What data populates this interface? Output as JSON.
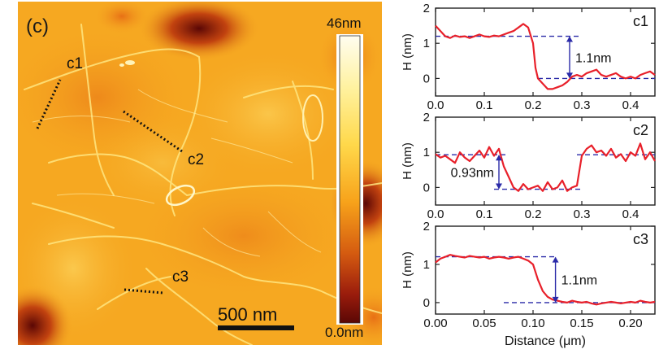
{
  "afm_image": {
    "panel_label": "(c)",
    "colorbar": {
      "max_label": "46nm",
      "min_label": "0.0nm",
      "max_value_nm": 46,
      "min_value_nm": 0.0,
      "colors": [
        "#fffdf0",
        "#fff2a0",
        "#ffd84a",
        "#f7a21a",
        "#d45a10",
        "#9a1c0c",
        "#5a0705"
      ]
    },
    "scale_bar_label": "500 nm",
    "scale_bar_length_nm": 500,
    "line_labels": [
      "c1",
      "c2",
      "c3"
    ],
    "base_color": "#f6a821"
  },
  "chart_data": [
    {
      "type": "line",
      "panel": "c1",
      "title": "c1",
      "xlabel": "",
      "ylabel": "H (nm)",
      "xlim": [
        0.0,
        0.45
      ],
      "ylim": [
        -0.5,
        2.0
      ],
      "xticks": [
        "0.0",
        "0.1",
        "0.2",
        "0.3",
        "0.4"
      ],
      "yticks": [
        "0",
        "1",
        "2"
      ],
      "series": [
        {
          "color": "#e8202a",
          "x": [
            0.0,
            0.01,
            0.02,
            0.03,
            0.04,
            0.05,
            0.06,
            0.07,
            0.08,
            0.09,
            0.1,
            0.11,
            0.12,
            0.13,
            0.14,
            0.15,
            0.16,
            0.17,
            0.18,
            0.19,
            0.2,
            0.205,
            0.21,
            0.22,
            0.23,
            0.24,
            0.25,
            0.26,
            0.27,
            0.28,
            0.29,
            0.3,
            0.31,
            0.32,
            0.33,
            0.34,
            0.35,
            0.36,
            0.37,
            0.38,
            0.39,
            0.4,
            0.41,
            0.42,
            0.43,
            0.44,
            0.45
          ],
          "y": [
            1.5,
            1.35,
            1.2,
            1.15,
            1.22,
            1.18,
            1.2,
            1.15,
            1.2,
            1.25,
            1.2,
            1.18,
            1.22,
            1.2,
            1.25,
            1.3,
            1.35,
            1.45,
            1.55,
            1.45,
            1.0,
            0.3,
            0.0,
            -0.15,
            -0.3,
            -0.3,
            -0.25,
            -0.2,
            -0.1,
            0.05,
            0.1,
            0.05,
            0.15,
            0.2,
            0.25,
            0.1,
            0.05,
            0.1,
            0.15,
            0.05,
            0.0,
            0.05,
            0.0,
            0.1,
            0.15,
            0.2,
            0.1
          ]
        }
      ],
      "reference_lines": [
        {
          "y": 1.2,
          "x_from": 0.0,
          "x_to": 0.3
        },
        {
          "y": 0.0,
          "x_from": 0.21,
          "x_to": 0.45
        }
      ],
      "annotation": {
        "text": "1.1nm",
        "arrow_x": 0.275,
        "y_from": 0.0,
        "y_to": 1.2
      }
    },
    {
      "type": "line",
      "panel": "c2",
      "title": "c2",
      "xlabel": "",
      "ylabel": "H (nm)",
      "xlim": [
        0.0,
        0.45
      ],
      "ylim": [
        -0.5,
        2.0
      ],
      "xticks": [
        "0.0",
        "0.1",
        "0.2",
        "0.3",
        "0.4"
      ],
      "yticks": [
        "0",
        "1",
        "2"
      ],
      "series": [
        {
          "color": "#e8202a",
          "x": [
            0.0,
            0.01,
            0.02,
            0.03,
            0.04,
            0.05,
            0.06,
            0.07,
            0.08,
            0.09,
            0.1,
            0.11,
            0.12,
            0.13,
            0.14,
            0.15,
            0.16,
            0.17,
            0.18,
            0.19,
            0.2,
            0.21,
            0.22,
            0.23,
            0.24,
            0.25,
            0.26,
            0.27,
            0.28,
            0.29,
            0.3,
            0.31,
            0.32,
            0.33,
            0.34,
            0.35,
            0.36,
            0.37,
            0.38,
            0.39,
            0.4,
            0.41,
            0.42,
            0.43,
            0.44,
            0.45
          ],
          "y": [
            0.95,
            0.85,
            0.9,
            0.8,
            0.7,
            1.0,
            0.85,
            0.75,
            0.9,
            1.05,
            0.85,
            1.15,
            0.9,
            1.1,
            0.6,
            0.3,
            0.0,
            -0.1,
            0.1,
            -0.05,
            0.0,
            0.05,
            -0.1,
            0.15,
            -0.05,
            0.0,
            0.2,
            -0.1,
            0.0,
            0.05,
            0.9,
            1.1,
            1.2,
            1.0,
            1.05,
            0.9,
            1.1,
            0.85,
            0.95,
            0.75,
            1.0,
            0.9,
            1.25,
            0.8,
            1.0,
            0.75
          ]
        }
      ],
      "reference_lines": [
        {
          "y": 0.93,
          "x_from": 0.0,
          "x_to": 0.15
        },
        {
          "y": -0.05,
          "x_from": 0.12,
          "x_to": 0.3
        },
        {
          "y": 0.93,
          "x_from": 0.29,
          "x_to": 0.45
        }
      ],
      "annotation": {
        "text": "0.93nm",
        "arrow_x": 0.13,
        "y_from": -0.05,
        "y_to": 0.93
      }
    },
    {
      "type": "line",
      "panel": "c3",
      "title": "c3",
      "xlabel": "Distance (μm)",
      "ylabel": "H (nm)",
      "xlim": [
        0.0,
        0.225
      ],
      "ylim": [
        -0.3,
        2.0
      ],
      "xticks": [
        "0.00",
        "0.05",
        "0.10",
        "0.15",
        "0.20"
      ],
      "yticks": [
        "0",
        "1",
        "2"
      ],
      "series": [
        {
          "color": "#e8202a",
          "x": [
            0.0,
            0.005,
            0.01,
            0.015,
            0.02,
            0.025,
            0.03,
            0.035,
            0.04,
            0.045,
            0.05,
            0.055,
            0.06,
            0.065,
            0.07,
            0.075,
            0.08,
            0.085,
            0.09,
            0.095,
            0.1,
            0.105,
            0.11,
            0.115,
            0.12,
            0.125,
            0.13,
            0.135,
            0.14,
            0.145,
            0.15,
            0.155,
            0.16,
            0.165,
            0.17,
            0.175,
            0.18,
            0.185,
            0.19,
            0.195,
            0.2,
            0.205,
            0.21,
            0.215,
            0.22,
            0.225
          ],
          "y": [
            1.05,
            1.15,
            1.2,
            1.25,
            1.22,
            1.2,
            1.18,
            1.22,
            1.2,
            1.18,
            1.2,
            1.15,
            1.18,
            1.2,
            1.18,
            1.15,
            1.18,
            1.2,
            1.15,
            1.1,
            1.0,
            0.6,
            0.3,
            0.15,
            0.08,
            0.05,
            0.02,
            0.0,
            0.05,
            0.02,
            0.0,
            0.02,
            -0.02,
            -0.05,
            -0.02,
            0.0,
            0.02,
            0.0,
            -0.02,
            0.0,
            0.02,
            0.0,
            0.05,
            0.02,
            0.0,
            0.02
          ]
        }
      ],
      "reference_lines": [
        {
          "y": 1.2,
          "x_from": 0.0,
          "x_to": 0.125
        },
        {
          "y": 0.0,
          "x_from": 0.07,
          "x_to": 0.225
        }
      ],
      "annotation": {
        "text": "1.1nm",
        "arrow_x": 0.123,
        "y_from": 0.0,
        "y_to": 1.2
      }
    }
  ]
}
